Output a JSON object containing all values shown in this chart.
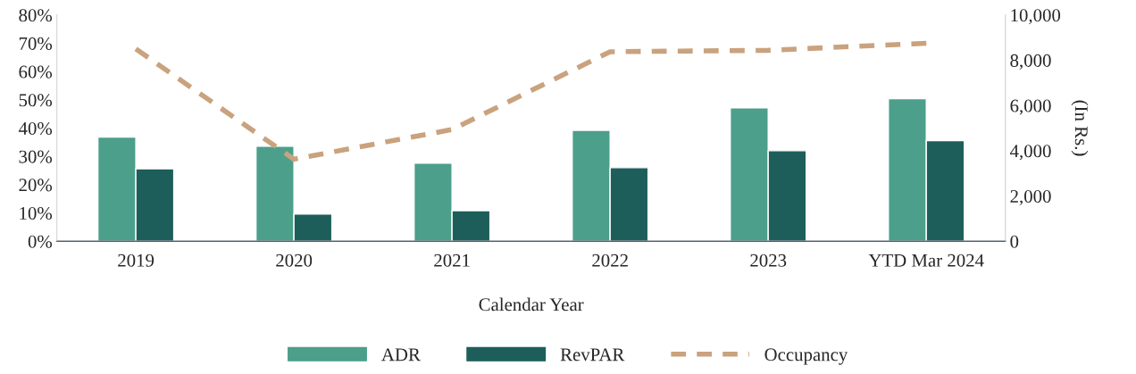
{
  "chart_data": {
    "type": "bar",
    "xlabel": "Calendar Year",
    "y2label": "(In Rs.)",
    "categories": [
      "2019",
      "2020",
      "2021",
      "2022",
      "2023",
      "YTD Mar 2024"
    ],
    "series": [
      {
        "name": "ADR",
        "axis": "y2",
        "color": "#4c9f8a",
        "values": [
          4600,
          4200,
          3450,
          4900,
          5900,
          6300
        ]
      },
      {
        "name": "RevPAR",
        "axis": "y2",
        "color": "#1d5e5a",
        "values": [
          3200,
          1200,
          1350,
          3250,
          4000,
          4450
        ]
      },
      {
        "name": "Occupancy",
        "type": "line",
        "axis": "y",
        "color": "#c9a27e",
        "line_style": "dashed",
        "values": [
          68,
          29,
          39.5,
          67,
          67.5,
          70
        ]
      }
    ],
    "ylim": [
      0,
      80
    ],
    "yticks": [
      {
        "value": 0,
        "label": "0%"
      },
      {
        "value": 10,
        "label": "10%"
      },
      {
        "value": 20,
        "label": "20%"
      },
      {
        "value": 30,
        "label": "30%"
      },
      {
        "value": 40,
        "label": "40%"
      },
      {
        "value": 50,
        "label": "50%"
      },
      {
        "value": 60,
        "label": "60%"
      },
      {
        "value": 70,
        "label": "70%"
      },
      {
        "value": 80,
        "label": "80%"
      }
    ],
    "y2lim": [
      0,
      10000
    ],
    "y2ticks": [
      0,
      {
        "value": 2000,
        "label": "2,000"
      },
      {
        "value": 4000,
        "label": "4,000"
      },
      {
        "value": 6000,
        "label": "6,000"
      },
      {
        "value": 8000,
        "label": "8,000"
      },
      {
        "value": 10000,
        "label": "10,000"
      }
    ],
    "grid": false,
    "legend": "bottom"
  }
}
